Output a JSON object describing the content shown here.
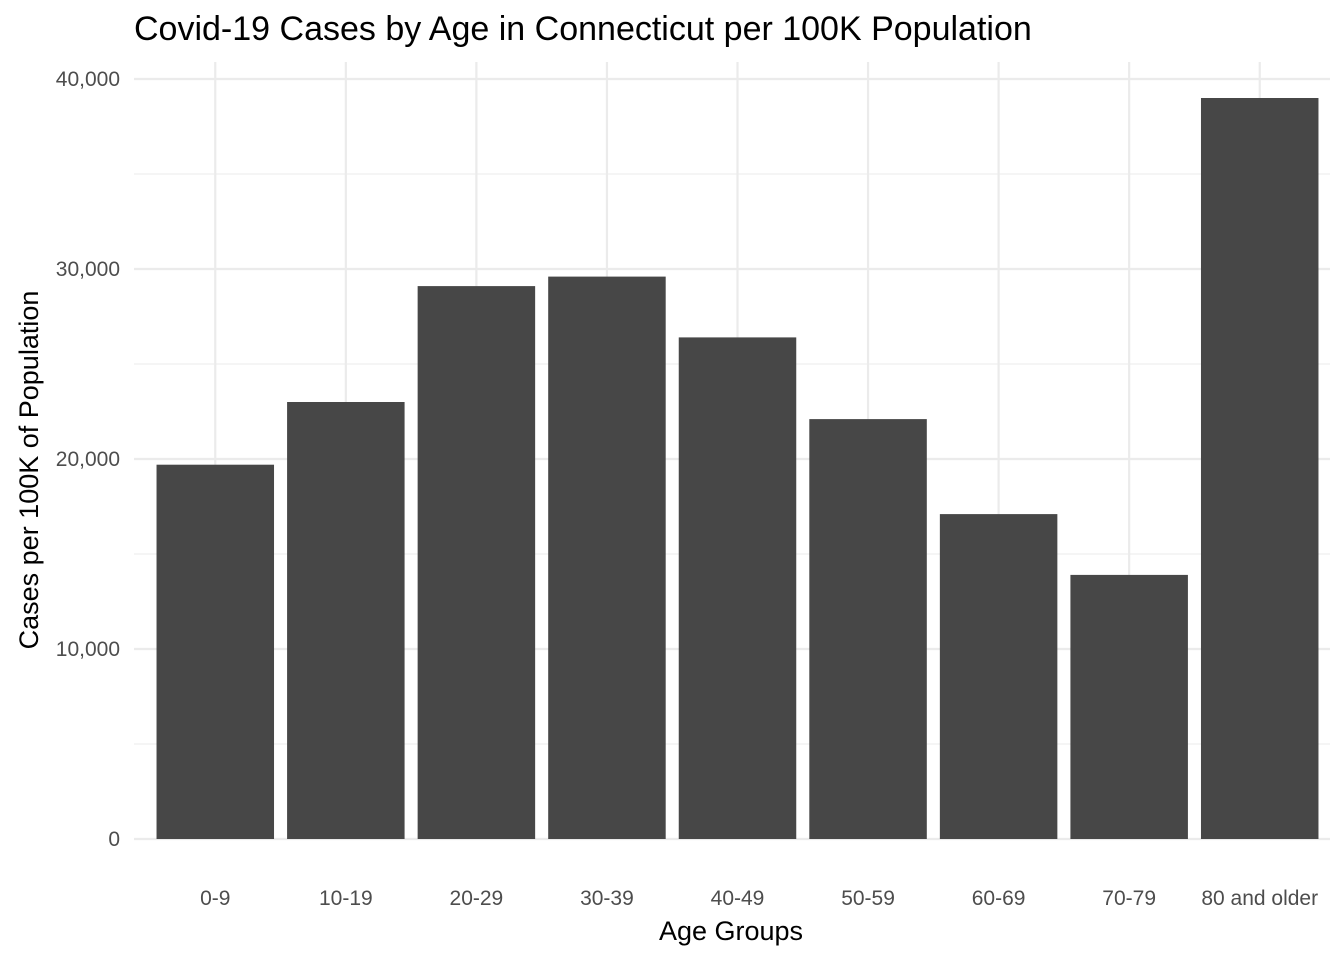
{
  "chart_data": {
    "type": "bar",
    "title": "Covid-19 Cases by Age in Connecticut per 100K Population",
    "xlabel": "Age Groups",
    "ylabel": "Cases per 100K of Population",
    "categories": [
      "0-9",
      "10-19",
      "20-29",
      "30-39",
      "40-49",
      "50-59",
      "60-69",
      "70-79",
      "80 and older"
    ],
    "values": [
      19700,
      23000,
      29100,
      29600,
      26400,
      22100,
      17100,
      13900,
      39000
    ],
    "ylim": [
      0,
      40000
    ],
    "yticks": [
      0,
      10000,
      20000,
      30000,
      40000
    ],
    "ytick_labels": [
      "0",
      "10,000",
      "20,000",
      "30,000",
      "40,000"
    ],
    "grid": true,
    "legend": "none",
    "bar_color": "#474747",
    "grid_color": "#ebebeb"
  }
}
